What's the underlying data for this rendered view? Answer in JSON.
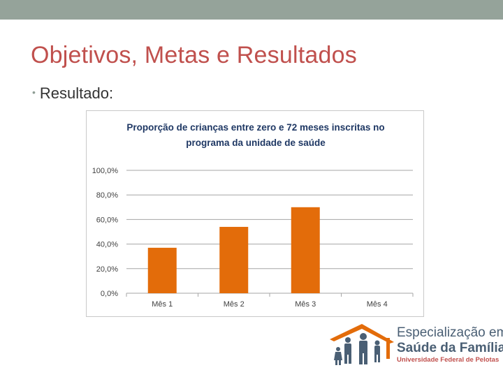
{
  "slide": {
    "title": "Objetivos, Metas e Resultados",
    "bullet": "Resultado:"
  },
  "chart_data": {
    "type": "bar",
    "title_lines": [
      "Proporção de crianças entre zero e 72 meses inscritas no",
      "programa da unidade de saúde"
    ],
    "categories": [
      "Mês 1",
      "Mês 2",
      "Mês 3",
      "Mês 4"
    ],
    "values": [
      37.0,
      54.0,
      70.0,
      null
    ],
    "ylim": [
      0,
      100
    ],
    "yticks": [
      0,
      20,
      40,
      60,
      80,
      100
    ],
    "ytick_labels": [
      "0,0%",
      "20,0%",
      "40,0%",
      "60,0%",
      "80,0%",
      "100,0%"
    ],
    "bar_color": "#e36c0a",
    "grid": true,
    "xlabel": "",
    "ylabel": ""
  },
  "logo": {
    "line1": "Especialização em",
    "line2": "Saúde da Família",
    "line3": "Universidade Federal de Pelotas",
    "colors": {
      "roof": "#e36c0a",
      "people": "#4a5f74",
      "text": "#4a5f74",
      "accent": "#c0504d"
    }
  }
}
